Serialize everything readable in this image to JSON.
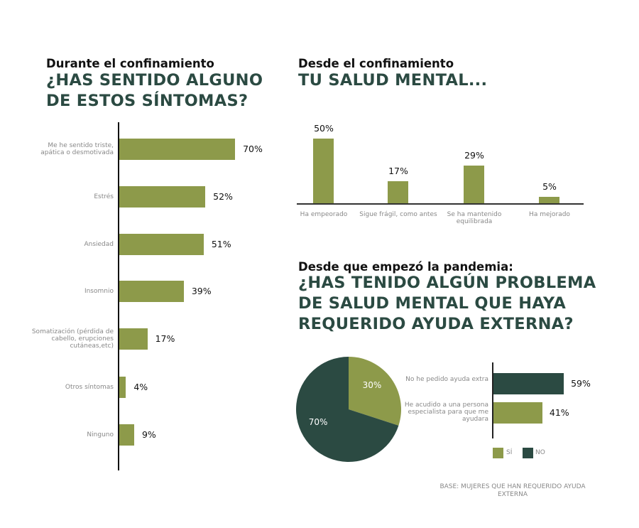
{
  "colors": {
    "green": "#8d9a4a",
    "dark": "#2b4a42"
  },
  "chart_data": [
    {
      "type": "bar",
      "orientation": "horizontal",
      "subtitle": "Durante el confinamiento",
      "title": "¿HAS SENTIDO ALGUNO DE ESTOS SÍNTOMAS?",
      "categories": [
        "Me he sentido triste, apática o desmotivada",
        "Estrés",
        "Ansiedad",
        "Insomnio",
        "Somatización (pérdida de cabello, erupciones cutáneas,etc)",
        "Otros síntomas",
        "Ninguno"
      ],
      "values": [
        70,
        52,
        51,
        39,
        17,
        4,
        9
      ],
      "labels": [
        "70%",
        "52%",
        "51%",
        "39%",
        "17%",
        "4%",
        "9%"
      ]
    },
    {
      "type": "bar",
      "orientation": "vertical",
      "subtitle": "Desde el confinamiento",
      "title": "TU SALUD MENTAL...",
      "categories": [
        "Ha empeorado",
        "Sigue frágil, como antes",
        "Se ha mantenido equilibrada",
        "Ha mejorado"
      ],
      "values": [
        50,
        17,
        29,
        5
      ],
      "labels": [
        "50%",
        "17%",
        "29%",
        "5%"
      ]
    },
    {
      "type": "pie",
      "subtitle": "Desde que empezó la pandemia:",
      "title": "¿HAS TENIDO ALGÚN PROBLEMA DE SALUD MENTAL QUE HAYA REQUERIDO AYUDA EXTERNA?",
      "legend": [
        "SÍ",
        "NO"
      ],
      "values": [
        30,
        70
      ],
      "labels": [
        "30%",
        "70%"
      ]
    },
    {
      "type": "bar",
      "orientation": "horizontal",
      "categories": [
        "No he pedido ayuda extra",
        "He acudido a una persona especialista para que me ayudara"
      ],
      "values": [
        59,
        41
      ],
      "labels": [
        "59%",
        "41%"
      ],
      "series_color": [
        "NO",
        "SÍ"
      ],
      "legend": [
        "SÍ",
        "NO"
      ]
    }
  ],
  "note": "BASE: MUJERES QUE HAN REQUERIDO AYUDA EXTERNA"
}
